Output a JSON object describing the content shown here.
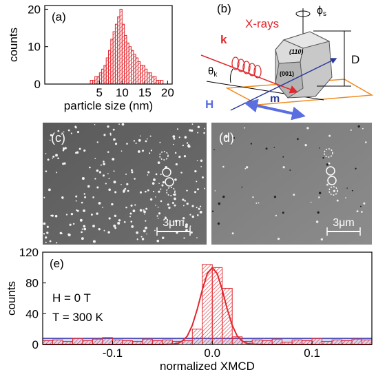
{
  "chart_data": [
    {
      "type": "histogram",
      "label": "(a)",
      "x_label": "particle size (nm)",
      "y_label": "counts",
      "bins": [
        3,
        3.5,
        4,
        4.5,
        5,
        5.5,
        6,
        6.5,
        7,
        7.5,
        8,
        8.5,
        9,
        9.5,
        10,
        10.5,
        11,
        11.5,
        12,
        12.5,
        13,
        13.5,
        14,
        14.5,
        15,
        15.5,
        16,
        16.5,
        17,
        17.5,
        18,
        18.5,
        19
      ],
      "values": [
        1,
        1,
        2,
        2,
        3,
        4,
        5,
        7,
        9,
        12,
        14,
        16,
        18,
        20,
        16,
        13,
        11,
        10,
        9,
        8,
        7,
        6,
        5,
        5,
        4,
        3,
        3,
        2,
        2,
        1,
        1,
        1
      ],
      "color": "#e0282e",
      "xlim": [
        -7,
        21
      ],
      "ylim": [
        0,
        21
      ],
      "xticks": [
        5,
        10,
        15,
        20
      ],
      "yticks": [
        0,
        10,
        20
      ]
    },
    {
      "type": "histogram",
      "label": "(e)",
      "x_label": "normalized XMCD",
      "y_label": "counts",
      "annotations": [
        "H = 0 T",
        "T = 300 K"
      ],
      "bins": [
        -0.17,
        -0.16,
        -0.15,
        -0.14,
        -0.13,
        -0.12,
        -0.11,
        -0.1,
        -0.09,
        -0.08,
        -0.07,
        -0.06,
        -0.05,
        -0.04,
        -0.03,
        -0.02,
        -0.01,
        0,
        0.01,
        0.02,
        0.03,
        0.04,
        0.05,
        0.06,
        0.07,
        0.08,
        0.09,
        0.1,
        0.11,
        0.12,
        0.13,
        0.14,
        0.15,
        0.16
      ],
      "values": [
        5,
        6,
        4,
        8,
        5,
        7,
        9,
        6,
        5,
        4,
        7,
        5,
        6,
        4,
        5,
        20,
        104,
        100,
        73,
        10,
        4,
        6,
        5,
        7,
        3,
        6,
        5,
        8,
        4,
        6,
        5,
        7,
        6
      ],
      "fit": {
        "x": [
          -0.17,
          -0.05,
          -0.04,
          -0.035,
          -0.03,
          -0.025,
          -0.02,
          -0.015,
          -0.01,
          -0.005,
          0,
          0.005,
          0.01,
          0.015,
          0.02,
          0.025,
          0.03,
          0.035,
          0.04,
          0.05,
          0.16
        ],
        "y": [
          0,
          0,
          0.4,
          1.4,
          4.4,
          11,
          25,
          46,
          71,
          92,
          100,
          92,
          71,
          46,
          25,
          11,
          4.4,
          1.4,
          0.4,
          0,
          0
        ]
      },
      "baseline": 8,
      "baseline_color": "#3a3ab0",
      "color": "#e0282e",
      "xlim": [
        -0.17,
        0.16
      ],
      "ylim": [
        0,
        120
      ],
      "xticks": [
        -0.1,
        {
          "value": 0,
          "label": "0.0"
        },
        0.1
      ],
      "yticks": [
        0,
        40,
        80,
        120
      ]
    }
  ],
  "diagram": {
    "label": "(b)",
    "xrays": "X-rays",
    "k": "k",
    "phi": "ϕ",
    "phi_sub": "s",
    "D": "D",
    "face_110": "(110)",
    "face_001": "(001)",
    "theta": "θ",
    "theta_sub": "k",
    "m": "m",
    "H": "H"
  },
  "images": [
    {
      "label": "(c)",
      "scale": "3μm"
    },
    {
      "label": "(d)",
      "scale": "3μm"
    }
  ]
}
